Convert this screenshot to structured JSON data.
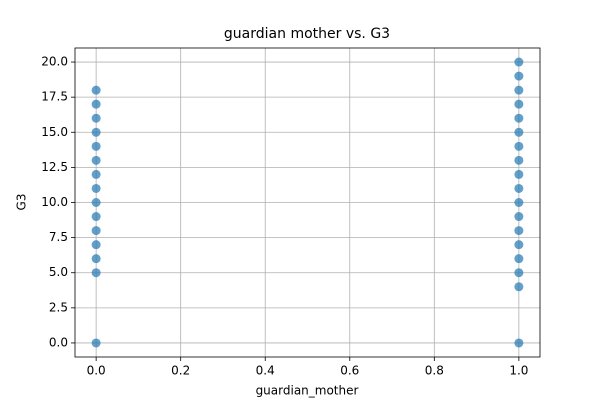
{
  "chart_data": {
    "type": "scatter",
    "title": "guardian mother vs. G3",
    "x_label": "guardian_mother",
    "y_label": "G3",
    "x": [
      0,
      0,
      0,
      0,
      0,
      0,
      0,
      0,
      0,
      0,
      0,
      0,
      0,
      0,
      0,
      1,
      1,
      1,
      1,
      1,
      1,
      1,
      1,
      1,
      1,
      1,
      1,
      1,
      1,
      1,
      1,
      1,
      1
    ],
    "values": [
      0,
      5,
      6,
      7,
      8,
      9,
      10,
      11,
      12,
      13,
      14,
      15,
      16,
      17,
      18,
      0,
      4,
      5,
      6,
      7,
      8,
      9,
      10,
      11,
      12,
      13,
      14,
      15,
      16,
      17,
      18,
      19,
      20
    ],
    "color": "#1f77b4",
    "xlim": [
      -0.05,
      1.05
    ],
    "xticks": [
      {
        "value": 0,
        "label": "0.0"
      },
      0.2,
      0.4,
      0.6,
      0.8,
      {
        "value": 1,
        "label": "1.0"
      }
    ],
    "ylim": [
      -1,
      21
    ],
    "yticks": [
      {
        "value": 0,
        "label": "0.0"
      },
      2.5,
      {
        "value": 5,
        "label": "5.0"
      },
      7.5,
      {
        "value": 10,
        "label": "10.0"
      },
      12.5,
      {
        "value": 15,
        "label": "15.0"
      },
      17.5,
      {
        "value": 20,
        "label": "20.0"
      }
    ],
    "grid": true
  }
}
